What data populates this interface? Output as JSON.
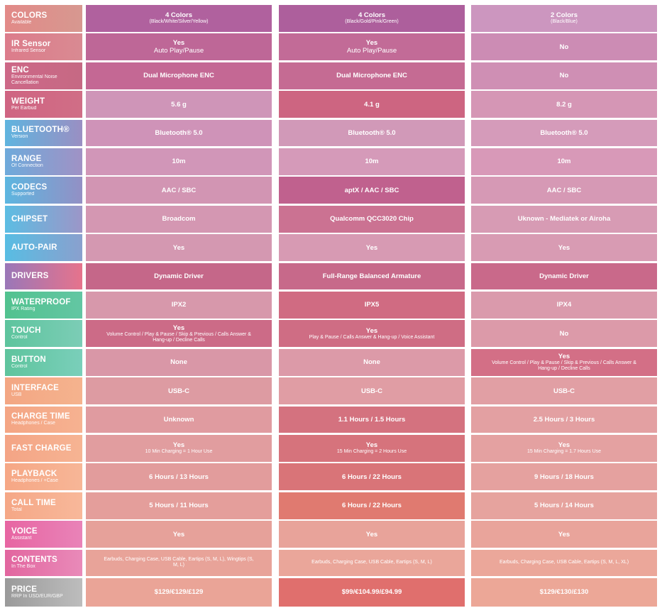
{
  "rows": [
    {
      "label": "COLORS",
      "sub": "Available",
      "grad": [
        "#e28a88",
        "#d79890"
      ],
      "cells": [
        {
          "v": "4 Colors",
          "d": "(Black/White/Silver/Yellow)",
          "c": "#b0619e"
        },
        {
          "v": "4 Colors",
          "d": "(Black/Gold/Pink/Green)",
          "c": "#ad5f9c"
        },
        {
          "v": "2 Colors",
          "d": "(Black/Blue)",
          "c": "#cc96bf"
        }
      ]
    },
    {
      "label": "IR Sensor",
      "sub": "Infrared Sensor",
      "grad": [
        "#dc7c8b",
        "#d98a92"
      ],
      "cells": [
        {
          "v": "Yes",
          "d": "Auto Play/Pause",
          "c": "#be6797"
        },
        {
          "v": "Yes",
          "d": "Auto Play/Pause",
          "c": "#c26b97"
        },
        {
          "v": "No",
          "d": "",
          "c": "#cc8cb4"
        }
      ]
    },
    {
      "label": "ENC",
      "sub": "Environmental Noise Cancellation",
      "grad": [
        "#cd6887",
        "#c66984"
      ],
      "cells": [
        {
          "v": "Dual Microphone ENC",
          "d": "",
          "c": "#c46894"
        },
        {
          "v": "Dual Microphone ENC",
          "d": "",
          "c": "#c56b93"
        },
        {
          "v": "No",
          "d": "",
          "c": "#cf8fb4"
        }
      ]
    },
    {
      "label": "WEIGHT",
      "sub": "Per Earbud",
      "grad": [
        "#cf6482",
        "#d06e86"
      ],
      "cells": [
        {
          "v": "5.6 g",
          "d": "",
          "c": "#cf95b8"
        },
        {
          "v": "4.1 g",
          "d": "",
          "c": "#cd6581"
        },
        {
          "v": "8.2 g",
          "d": "",
          "c": "#d596b5"
        }
      ]
    },
    {
      "label": "BLUETOOTH®",
      "sub": "Version",
      "grad": [
        "#5fb4df",
        "#9a8fc3"
      ],
      "cells": [
        {
          "v": "Bluetooth® 5.0",
          "d": "",
          "c": "#cf93b8"
        },
        {
          "v": "Bluetooth® 5.0",
          "d": "",
          "c": "#d199b8"
        },
        {
          "v": "Bluetooth® 5.0",
          "d": "",
          "c": "#d59bba"
        }
      ]
    },
    {
      "label": "RANGE",
      "sub": "Of Connection",
      "grad": [
        "#6eaadb",
        "#a092c5"
      ],
      "cells": [
        {
          "v": "10m",
          "d": "",
          "c": "#d196b8"
        },
        {
          "v": "10m",
          "d": "",
          "c": "#d59ab9"
        },
        {
          "v": "10m",
          "d": "",
          "c": "#d899b8"
        }
      ]
    },
    {
      "label": "CODECS",
      "sub": "Supported",
      "grad": [
        "#5cb6e0",
        "#9390c5"
      ],
      "cells": [
        {
          "v": "AAC / SBC",
          "d": "",
          "c": "#d295b3"
        },
        {
          "v": "aptX / AAC / SBC",
          "d": "",
          "c": "#c0618e"
        },
        {
          "v": "AAC / SBC",
          "d": "",
          "c": "#d699b5"
        }
      ]
    },
    {
      "label": "CHIPSET",
      "sub": "",
      "grad": [
        "#5cbde3",
        "#9c96c8"
      ],
      "cells": [
        {
          "v": "Broadcom",
          "d": "",
          "c": "#d497b2"
        },
        {
          "v": "Qualcomm QCC3020 Chip",
          "d": "",
          "c": "#cb7292"
        },
        {
          "v": "Uknown - Mediatek or Airoha",
          "d": "",
          "c": "#d79bb4"
        }
      ]
    },
    {
      "label": "AUTO-PAIR",
      "sub": "",
      "grad": [
        "#58bde3",
        "#8aa0ce"
      ],
      "cells": [
        {
          "v": "Yes",
          "d": "",
          "c": "#d498b1"
        },
        {
          "v": "Yes",
          "d": "",
          "c": "#d79ab3"
        },
        {
          "v": "Yes",
          "d": "",
          "c": "#d89bb3"
        }
      ]
    },
    {
      "label": "DRIVERS",
      "sub": "",
      "grad": [
        "#9a77b8",
        "#e6738c"
      ],
      "cells": [
        {
          "v": "Dynamic Driver",
          "d": "",
          "c": "#c56789"
        },
        {
          "v": "Full-Range Balanced Armature",
          "d": "",
          "c": "#c7698a"
        },
        {
          "v": "Dynamic Driver",
          "d": "",
          "c": "#c9698a"
        }
      ]
    },
    {
      "label": "WATERPROOF",
      "sub": "IPX Rating",
      "grad": [
        "#52c28f",
        "#63c6a3"
      ],
      "cells": [
        {
          "v": "IPX2",
          "d": "",
          "c": "#d798ab"
        },
        {
          "v": "IPX5",
          "d": "",
          "c": "#d06b82"
        },
        {
          "v": "IPX4",
          "d": "",
          "c": "#da9aac"
        }
      ]
    },
    {
      "label": "TOUCH",
      "sub": "Control",
      "grad": [
        "#5dc49d",
        "#7ccdb6"
      ],
      "cells": [
        {
          "v": "Yes",
          "d": "Volume Control / Play & Pause / Skip & Previous / Calls Answer & Hang-up / Decline Calls",
          "c": "#cc6b87"
        },
        {
          "v": "Yes",
          "d": "Play & Pause / Calls Answer & Hang-up / Voice Assistant",
          "c": "#cf6d84"
        },
        {
          "v": "No",
          "d": "",
          "c": "#dc9aa9"
        }
      ]
    },
    {
      "label": "BUTTON",
      "sub": "Control",
      "grad": [
        "#5ec49d",
        "#7acfba"
      ],
      "cells": [
        {
          "v": "None",
          "d": "",
          "c": "#d997a7"
        },
        {
          "v": "None",
          "d": "",
          "c": "#dc9aa8"
        },
        {
          "v": "Yes",
          "d": "Volume Control / Play & Pause / Skip & Previous / Calls Answer & Hang-up / Decline Calls",
          "c": "#d36f86"
        }
      ]
    },
    {
      "label": "INTERFACE",
      "sub": "USB",
      "grad": [
        "#f3a683",
        "#f5b38e"
      ],
      "cells": [
        {
          "v": "USB-C",
          "d": "",
          "c": "#dd9ba2"
        },
        {
          "v": "USB-C",
          "d": "",
          "c": "#e09da4"
        },
        {
          "v": "USB-C",
          "d": "",
          "c": "#e19fa4"
        }
      ]
    },
    {
      "label": "CHARGE TIME",
      "sub": "Headphones / Case",
      "grad": [
        "#f4a584",
        "#f6b291"
      ],
      "cells": [
        {
          "v": "Unknown",
          "d": "",
          "c": "#e09ba0"
        },
        {
          "v": "1.1 Hours / 1.5 Hours",
          "d": "",
          "c": "#d4727f"
        },
        {
          "v": "2.5 Hours / 3 Hours",
          "d": "",
          "c": "#e3a0a2"
        }
      ]
    },
    {
      "label": "FAST CHARGE",
      "sub": "",
      "grad": [
        "#f4a485",
        "#f6b493"
      ],
      "cells": [
        {
          "v": "Yes",
          "d": "10 Min Charging = 1 Hour Use",
          "c": "#e19d9f"
        },
        {
          "v": "Yes",
          "d": "15 Min Charging = 2 Hours Use",
          "c": "#d6737c"
        },
        {
          "v": "Yes",
          "d": "15 Min Charging = 1.7 Hours Use",
          "c": "#e4a1a1"
        }
      ]
    },
    {
      "label": "PLAYBACK",
      "sub": "Headphones / +Case",
      "grad": [
        "#f6a785",
        "#f7b697"
      ],
      "cells": [
        {
          "v": "6 Hours / 13 Hours",
          "d": "",
          "c": "#e29c9c"
        },
        {
          "v": "6 Hours / 22 Hours",
          "d": "",
          "c": "#d97478"
        },
        {
          "v": "9 Hours / 18 Hours",
          "d": "",
          "c": "#e5a19f"
        }
      ]
    },
    {
      "label": "CALL TIME",
      "sub": "Total",
      "grad": [
        "#f5a786",
        "#f8b89a"
      ],
      "cells": [
        {
          "v": "5 Hours / 11 Hours",
          "d": "",
          "c": "#e49e9b"
        },
        {
          "v": "6 Hours / 22 Hours",
          "d": "",
          "c": "#e07a70"
        },
        {
          "v": "5 Hours / 14 Hours",
          "d": "",
          "c": "#e6a39e"
        }
      ]
    },
    {
      "label": "VOICE",
      "sub": "Assistant",
      "grad": [
        "#e765a2",
        "#e983b8"
      ],
      "cells": [
        {
          "v": "Yes",
          "d": "",
          "c": "#e6a19a"
        },
        {
          "v": "Yes",
          "d": "",
          "c": "#e8a39a"
        },
        {
          "v": "Yes",
          "d": "",
          "c": "#e9a49b"
        }
      ]
    },
    {
      "label": "CONTENTS",
      "sub": "In The Box",
      "grad": [
        "#e2669f",
        "#e98ab9"
      ],
      "cells": [
        {
          "v": "",
          "d": "Earbuds, Charging Case, USB Cable, Eartips (S, M, L), Wingtips (S, M, L)",
          "c": "#e8a399"
        },
        {
          "v": "",
          "d": "Earbuds, Charging Case, USB Cable, Eartips (S, M, L)",
          "c": "#eaa69a"
        },
        {
          "v": "",
          "d": "Earbuds, Charging Case, USB Cable, Eartips (S, M, L, XL)",
          "c": "#eba79a"
        }
      ]
    },
    {
      "label": "PRICE",
      "sub": "RRP In USD/EUR/GBP",
      "grad": [
        "#9a9a9a",
        "#bdbdbd"
      ],
      "cells": [
        {
          "v": "$129/€129/£129",
          "d": "",
          "c": "#eaa497"
        },
        {
          "v": "$99/€104.99/£94.99",
          "d": "",
          "c": "#e06f6d"
        },
        {
          "v": "$129/€130/£130",
          "d": "",
          "c": "#eca797"
        }
      ]
    }
  ]
}
